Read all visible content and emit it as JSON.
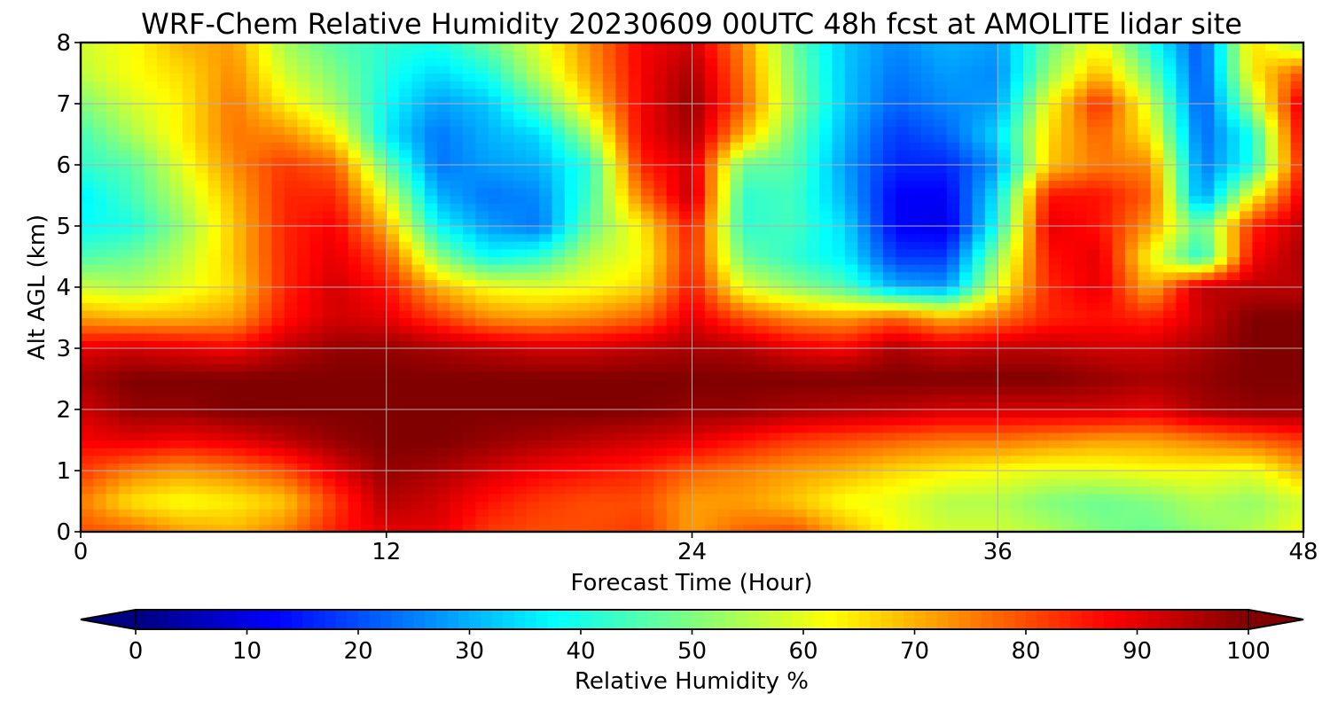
{
  "chart_data": {
    "type": "heatmap",
    "title": "WRF-Chem Relative Humidity 20230609 00UTC 48h fcst at AMOLITE lidar site",
    "xlabel": "Forecast Time (Hour)",
    "ylabel": "Alt AGL (km)",
    "xlim": [
      0,
      48
    ],
    "ylim": [
      0,
      8
    ],
    "xticks": [
      0,
      12,
      24,
      36,
      48
    ],
    "yticks": [
      0,
      1,
      2,
      3,
      4,
      5,
      6,
      7,
      8
    ],
    "grid": true,
    "colormap": "jet",
    "colorbar": {
      "label": "Relative Humidity %",
      "min": 0,
      "max": 100,
      "ticks": [
        0,
        10,
        20,
        30,
        40,
        50,
        60,
        70,
        80,
        90,
        100
      ],
      "extend": "both",
      "orientation": "horizontal",
      "placement": "bottom"
    },
    "x_hours": [
      0,
      2,
      4,
      6,
      8,
      10,
      12,
      14,
      16,
      18,
      20,
      22,
      24,
      26,
      28,
      30,
      32,
      34,
      36,
      38,
      40,
      42,
      44,
      46,
      48
    ],
    "y_km": [
      0,
      0.5,
      1,
      1.5,
      2,
      2.5,
      3,
      3.5,
      4,
      4.5,
      5,
      5.5,
      6,
      6.5,
      7,
      7.5,
      8
    ],
    "values_by_height": [
      [
        80,
        78,
        72,
        70,
        75,
        85,
        90,
        90,
        82,
        80,
        80,
        82,
        72,
        78,
        80,
        70,
        62,
        58,
        58,
        55,
        50,
        48,
        52,
        55,
        62
      ],
      [
        75,
        65,
        62,
        64,
        68,
        82,
        95,
        92,
        86,
        82,
        80,
        80,
        72,
        72,
        68,
        62,
        60,
        55,
        55,
        50,
        48,
        50,
        55,
        52,
        58
      ],
      [
        82,
        75,
        72,
        75,
        80,
        90,
        98,
        96,
        92,
        88,
        86,
        84,
        78,
        75,
        72,
        70,
        66,
        64,
        62,
        60,
        60,
        62,
        62,
        60,
        70
      ],
      [
        88,
        90,
        88,
        90,
        94,
        98,
        100,
        100,
        98,
        96,
        94,
        92,
        90,
        86,
        82,
        80,
        78,
        76,
        76,
        74,
        72,
        72,
        75,
        78,
        82
      ],
      [
        92,
        98,
        98,
        100,
        100,
        100,
        100,
        100,
        100,
        100,
        100,
        100,
        98,
        98,
        96,
        95,
        94,
        92,
        92,
        92,
        92,
        90,
        96,
        98,
        98
      ],
      [
        96,
        100,
        100,
        100,
        100,
        100,
        100,
        100,
        100,
        100,
        100,
        100,
        100,
        100,
        100,
        100,
        100,
        100,
        100,
        100,
        98,
        96,
        98,
        100,
        100
      ],
      [
        90,
        92,
        90,
        88,
        94,
        98,
        98,
        96,
        94,
        92,
        92,
        94,
        96,
        95,
        90,
        88,
        96,
        92,
        94,
        94,
        92,
        92,
        96,
        100,
        100
      ],
      [
        72,
        70,
        70,
        72,
        86,
        92,
        90,
        82,
        74,
        72,
        74,
        78,
        90,
        80,
        74,
        72,
        78,
        70,
        76,
        84,
        86,
        84,
        92,
        100,
        100
      ],
      [
        58,
        55,
        60,
        66,
        84,
        92,
        86,
        70,
        62,
        60,
        62,
        66,
        86,
        60,
        52,
        45,
        30,
        28,
        60,
        84,
        90,
        70,
        94,
        94,
        94
      ],
      [
        45,
        48,
        56,
        68,
        84,
        90,
        80,
        52,
        38,
        42,
        56,
        62,
        84,
        48,
        42,
        36,
        18,
        18,
        52,
        86,
        90,
        62,
        40,
        88,
        96
      ],
      [
        38,
        40,
        52,
        68,
        84,
        88,
        70,
        38,
        28,
        24,
        48,
        64,
        86,
        42,
        44,
        34,
        12,
        10,
        40,
        90,
        86,
        72,
        46,
        84,
        94
      ],
      [
        36,
        44,
        56,
        70,
        84,
        84,
        60,
        30,
        24,
        26,
        44,
        76,
        94,
        42,
        44,
        30,
        12,
        12,
        36,
        86,
        86,
        78,
        26,
        62,
        90
      ],
      [
        42,
        46,
        60,
        74,
        82,
        78,
        48,
        24,
        28,
        30,
        42,
        84,
        92,
        48,
        46,
        28,
        16,
        16,
        28,
        68,
        76,
        74,
        24,
        40,
        86
      ],
      [
        44,
        54,
        64,
        76,
        74,
        64,
        36,
        24,
        30,
        34,
        54,
        88,
        96,
        70,
        48,
        30,
        18,
        22,
        34,
        66,
        78,
        64,
        22,
        40,
        90
      ],
      [
        50,
        58,
        64,
        76,
        64,
        54,
        38,
        28,
        32,
        46,
        66,
        88,
        98,
        78,
        52,
        32,
        22,
        26,
        28,
        62,
        84,
        58,
        20,
        54,
        92
      ],
      [
        56,
        62,
        66,
        74,
        58,
        50,
        40,
        34,
        40,
        56,
        72,
        88,
        96,
        76,
        50,
        32,
        24,
        28,
        26,
        52,
        70,
        48,
        20,
        64,
        80
      ],
      [
        58,
        62,
        70,
        72,
        54,
        46,
        42,
        40,
        48,
        60,
        74,
        88,
        92,
        74,
        48,
        32,
        26,
        30,
        28,
        48,
        62,
        40,
        20,
        66,
        52
      ]
    ]
  }
}
